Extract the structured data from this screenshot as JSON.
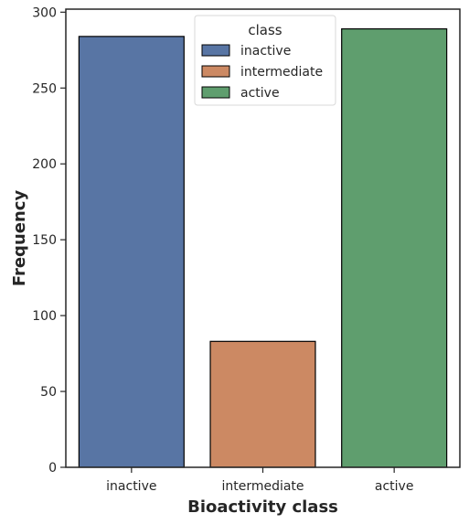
{
  "chart_data": {
    "type": "bar",
    "categories": [
      "inactive",
      "intermediate",
      "active"
    ],
    "values": [
      284,
      83,
      289
    ],
    "colors": [
      "#5875a4",
      "#cc8963",
      "#5f9e6e"
    ],
    "edge_color": "#000000",
    "xlabel": "Bioactivity class",
    "ylabel": "Frequency",
    "ylim": [
      0,
      302
    ],
    "yticks": [
      0,
      50,
      100,
      150,
      200,
      250,
      300
    ],
    "grid": false,
    "legend": {
      "title": "class",
      "placement": "top-center",
      "entries": [
        "inactive",
        "intermediate",
        "active"
      ]
    }
  }
}
